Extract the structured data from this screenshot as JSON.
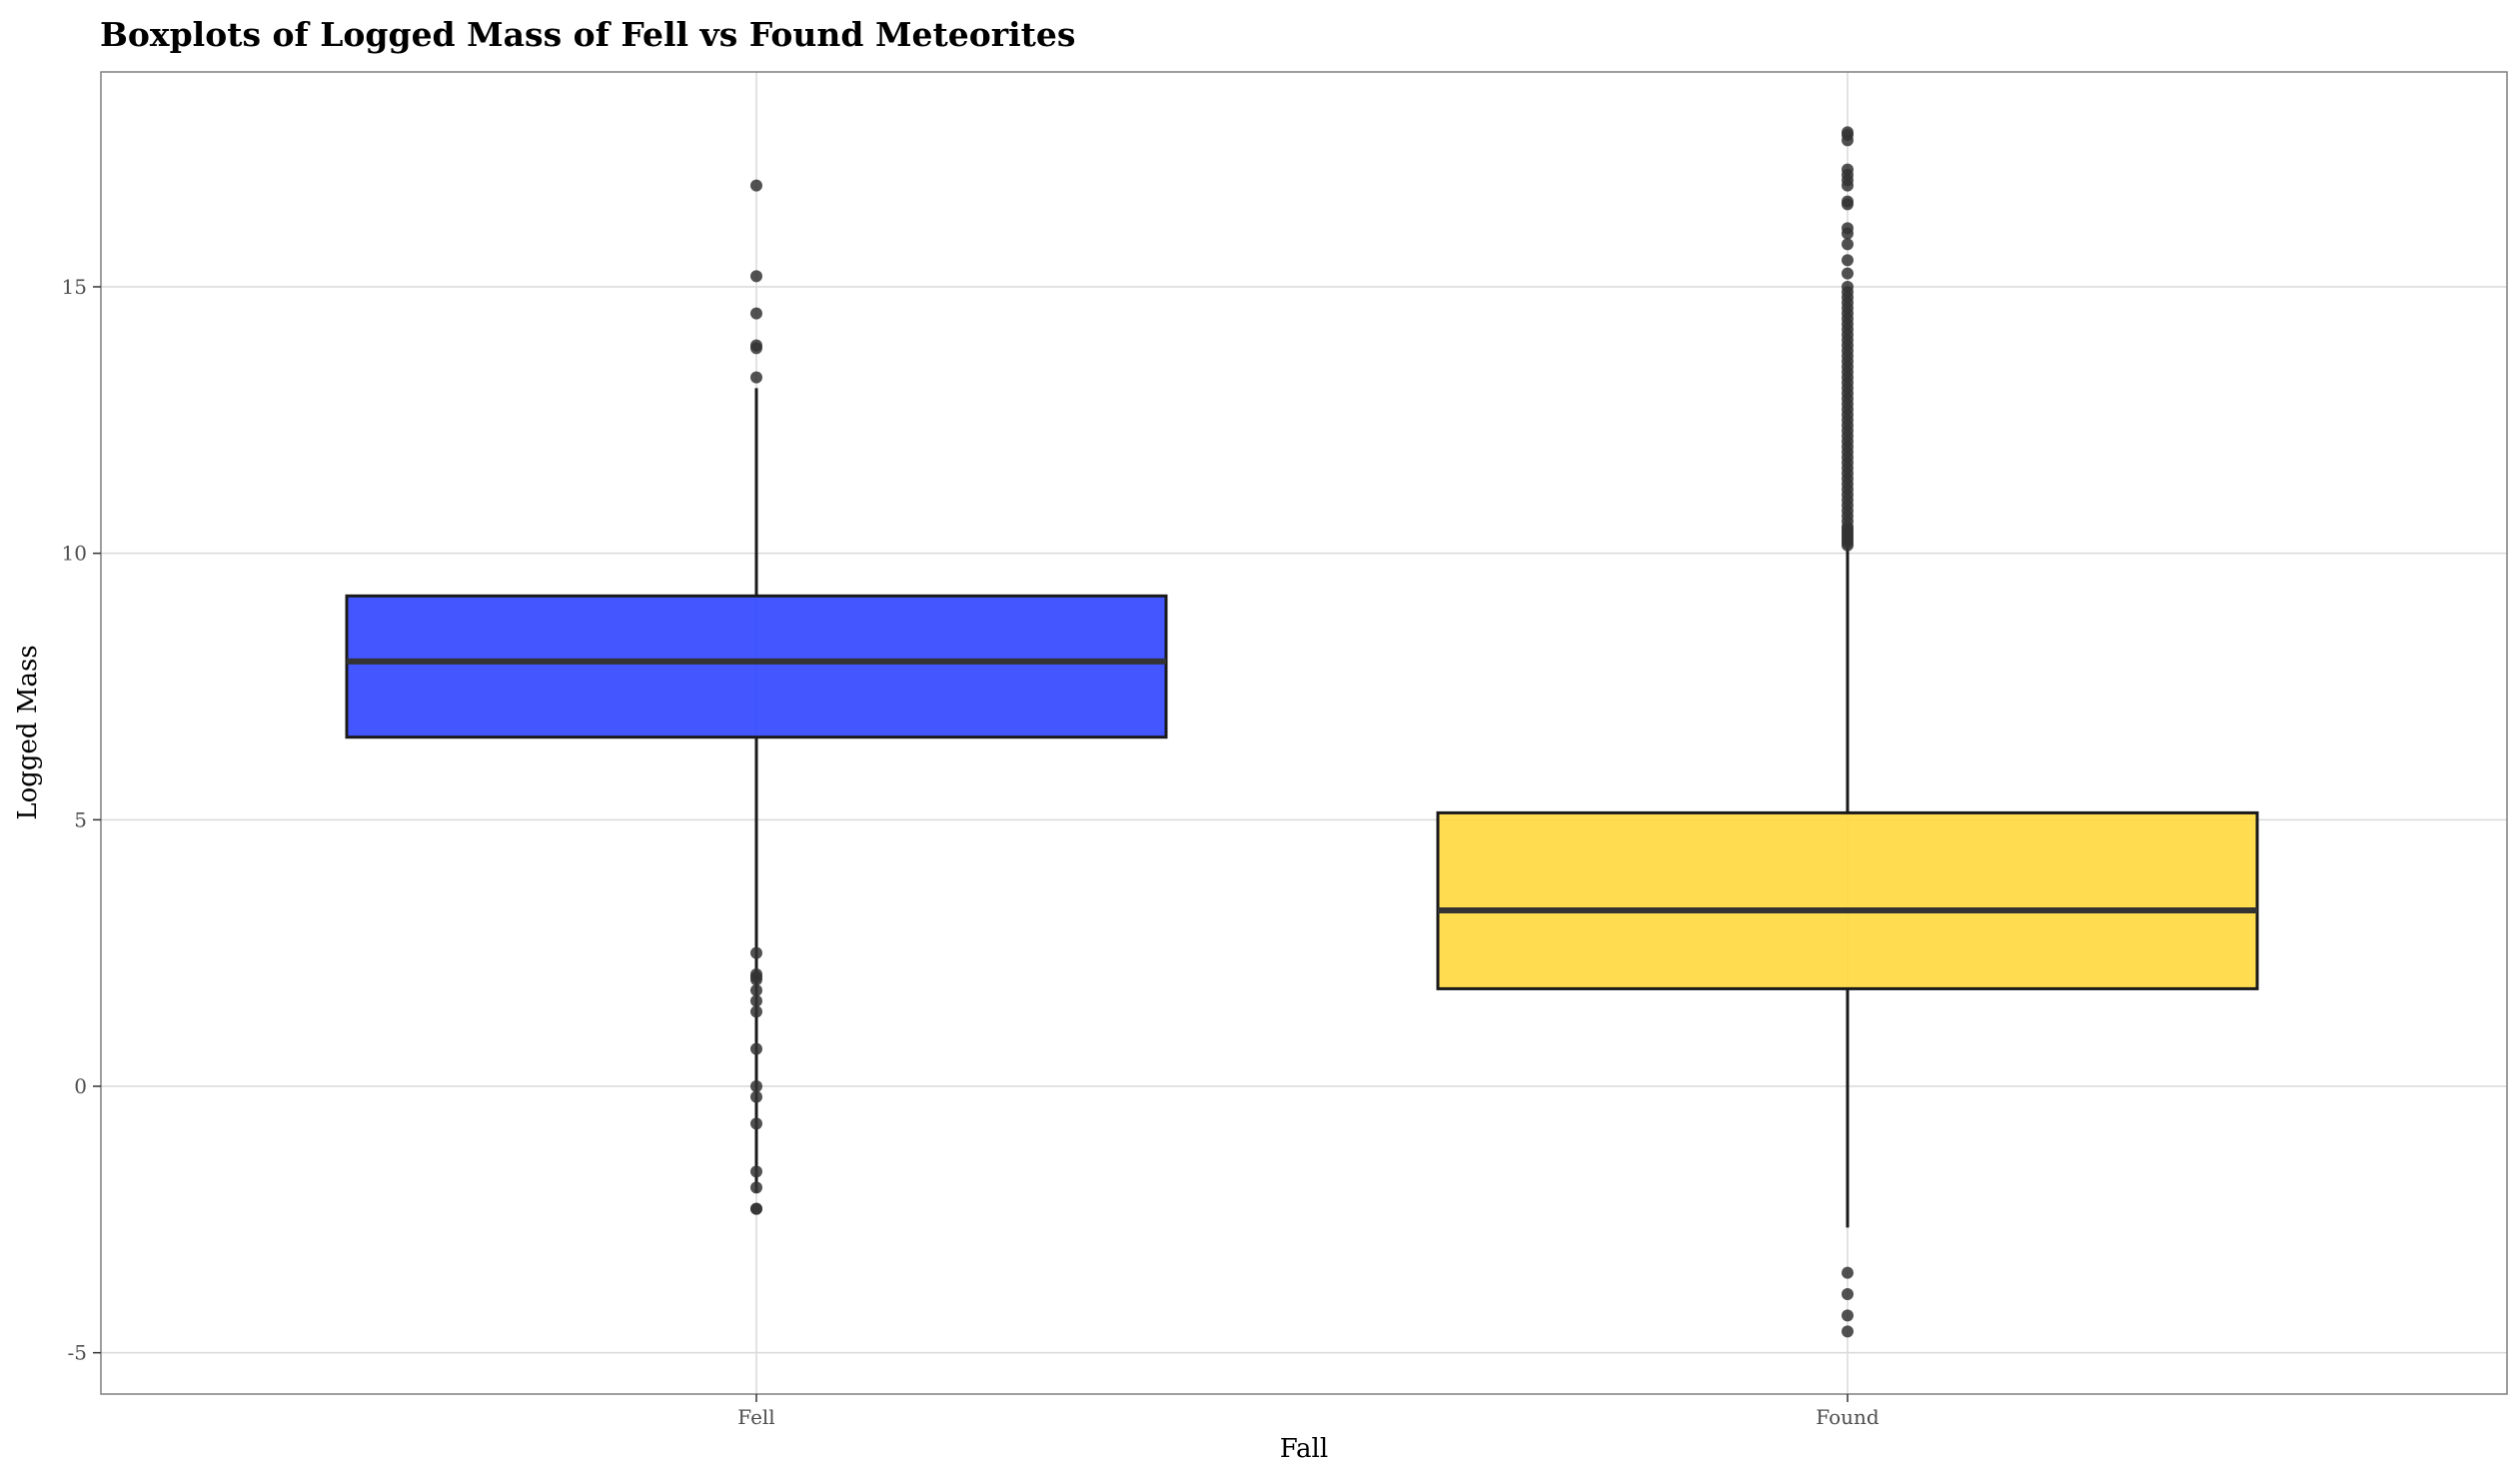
{
  "chart_data": {
    "type": "boxplot",
    "title": "Boxplots of Logged Mass of Fell vs Found Meteorites",
    "xlabel": "Fall",
    "ylabel": "Logged Mass",
    "ylim": [
      -5.7,
      19.0
    ],
    "yticks": [
      -5,
      0,
      5,
      10,
      15
    ],
    "grid": true,
    "legend": "none",
    "categories": [
      "Fell",
      "Found"
    ],
    "colors": {
      "Fell": "#2f44ff",
      "Found": "#ffd83d"
    },
    "boxes": [
      {
        "category": "Fell",
        "whisker_low": -2.0,
        "q1": 6.55,
        "median": 7.97,
        "q3": 9.2,
        "whisker_high": 13.1,
        "outliers": [
          16.9,
          15.2,
          14.5,
          13.9,
          13.85,
          13.3,
          2.5,
          2.1,
          2.05,
          2.0,
          1.8,
          1.6,
          1.4,
          0.7,
          0.0,
          -0.2,
          -0.7,
          -1.6,
          -1.9,
          -2.3,
          -2.3
        ]
      },
      {
        "category": "Found",
        "whisker_low": -2.65,
        "q1": 1.83,
        "median": 3.3,
        "q3": 5.13,
        "whisker_high": 10.1,
        "outliers": [
          17.9,
          17.85,
          17.75,
          17.2,
          17.1,
          17.0,
          16.9,
          16.6,
          16.55,
          16.1,
          16.0,
          15.8,
          15.5,
          15.25,
          15.0,
          14.9,
          14.8,
          14.7,
          14.6,
          14.5,
          14.4,
          14.3,
          14.2,
          14.1,
          14.0,
          13.9,
          13.8,
          13.7,
          13.6,
          13.5,
          13.4,
          13.3,
          13.2,
          13.1,
          13.0,
          12.9,
          12.8,
          12.7,
          12.6,
          12.5,
          12.4,
          12.3,
          12.2,
          12.1,
          12.0,
          11.9,
          11.8,
          11.7,
          11.6,
          11.5,
          11.4,
          11.3,
          11.2,
          11.1,
          11.0,
          10.9,
          10.8,
          10.7,
          10.6,
          10.5,
          10.45,
          10.4,
          10.35,
          10.3,
          10.25,
          10.2,
          10.15,
          -3.5,
          -3.9,
          -4.3,
          -4.6
        ]
      }
    ]
  }
}
